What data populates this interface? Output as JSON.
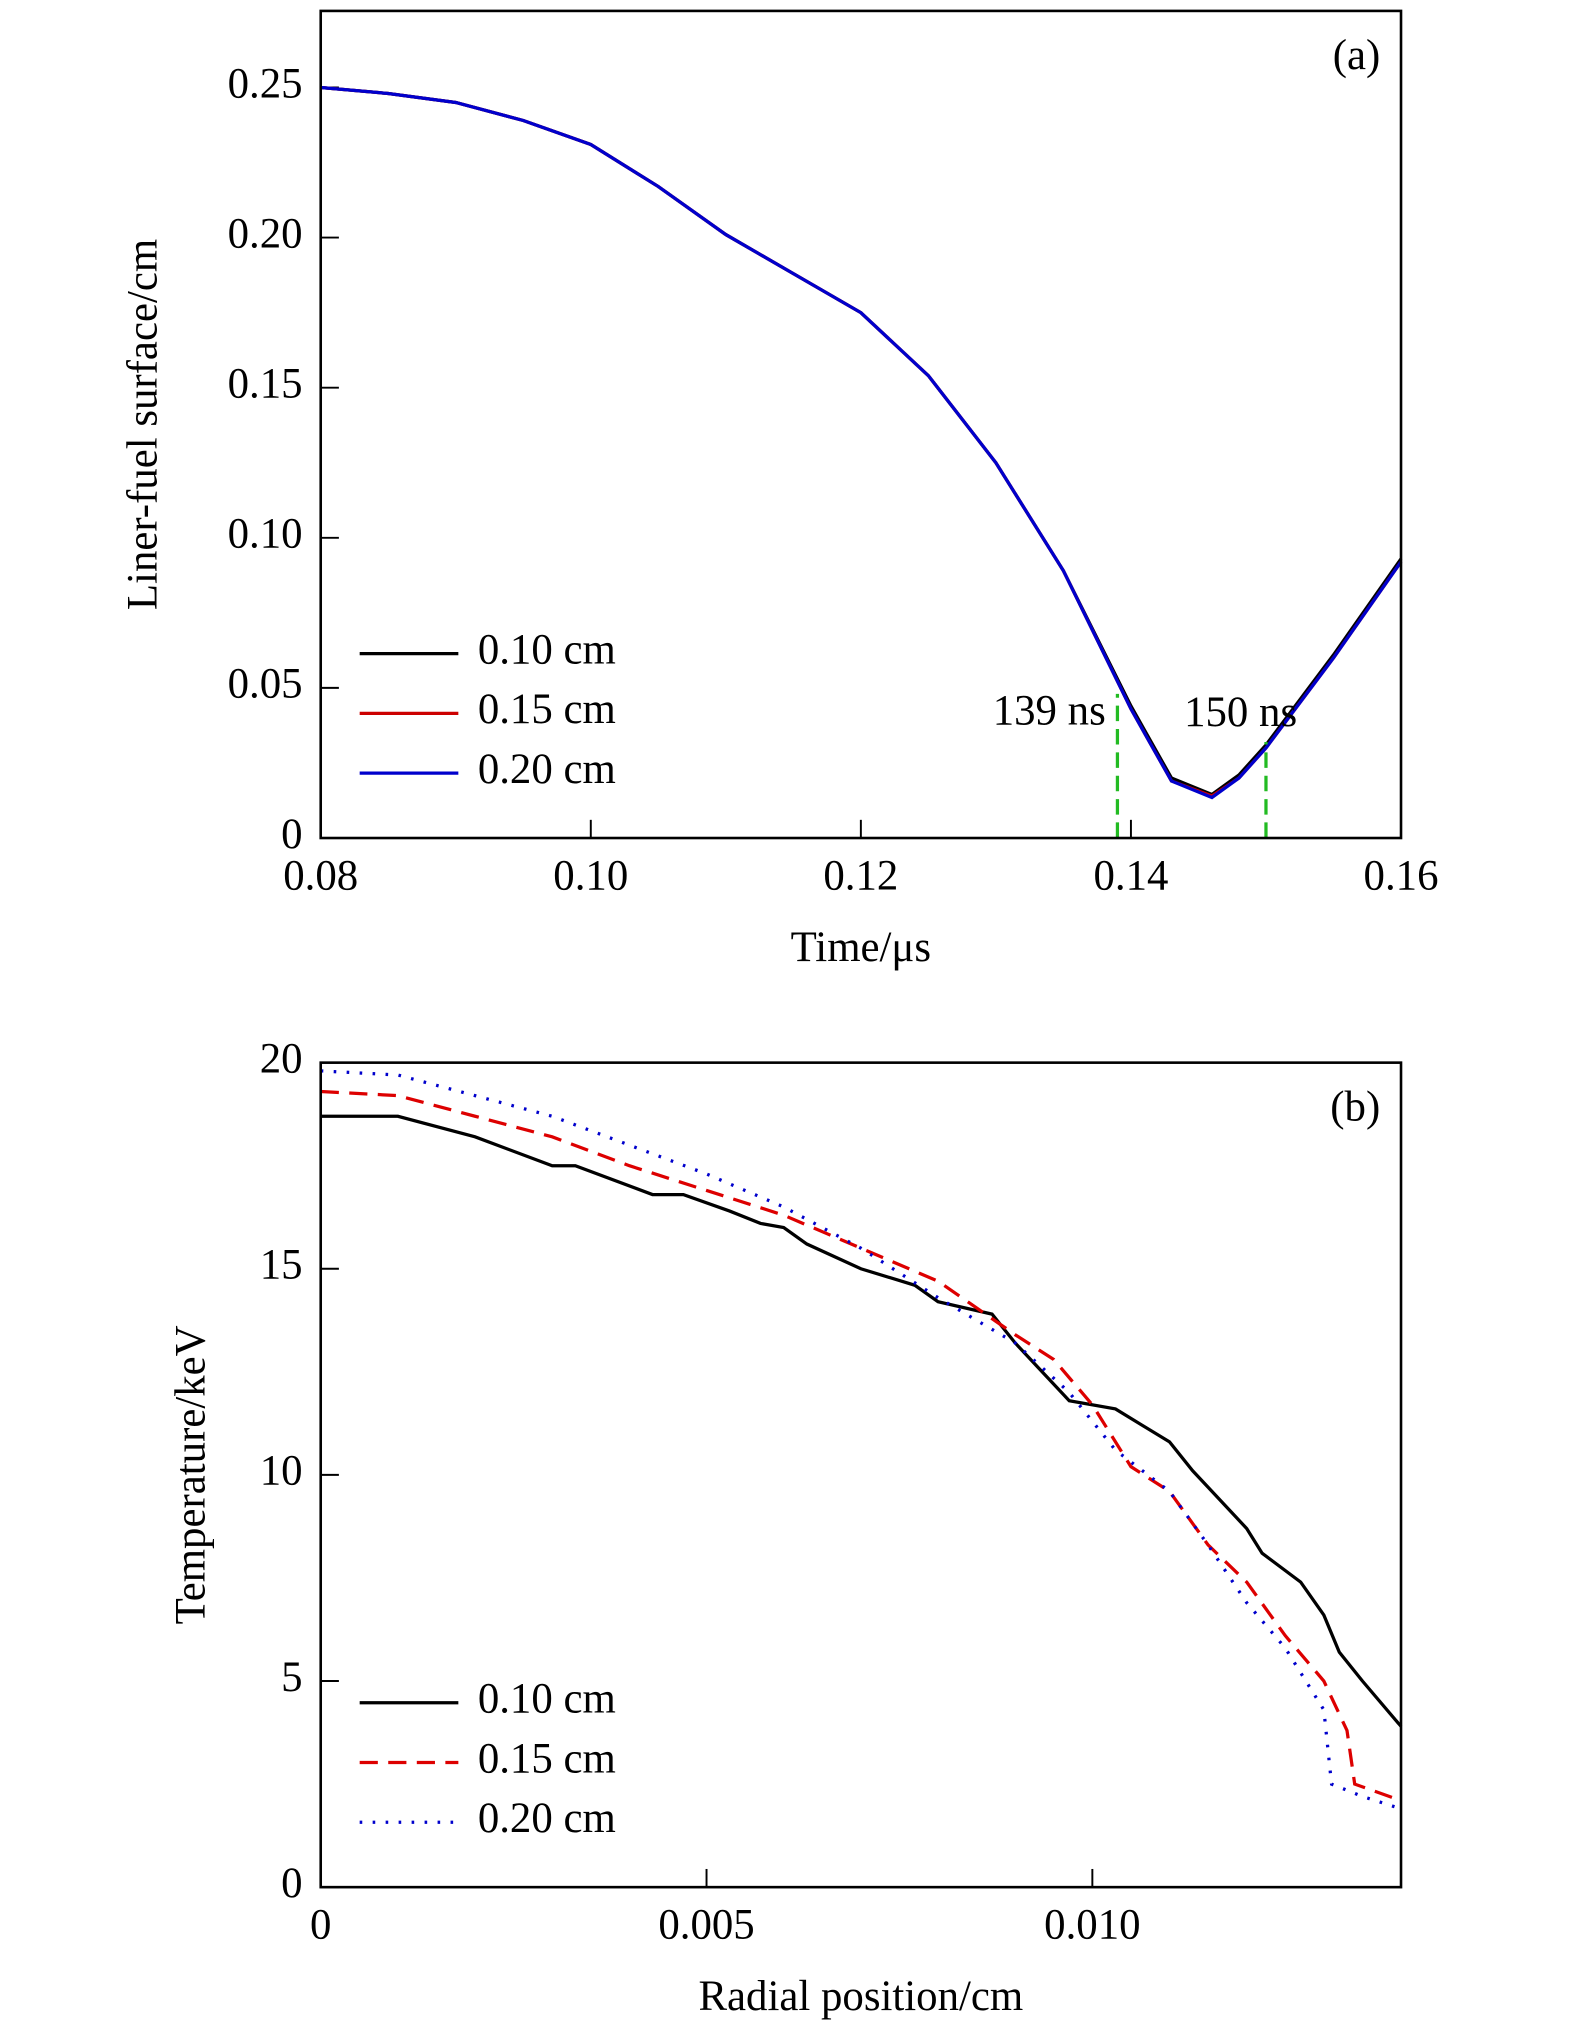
{
  "chart_data": [
    {
      "type": "line",
      "panel_label": "(a)",
      "x_label": "Time/μs",
      "y_label": "Liner-fuel surface/cm",
      "xlim": [
        0.08,
        0.16
      ],
      "xticks": [
        0.08,
        {
          "value": 0.1,
          "label": "0.10"
        },
        0.12,
        0.14,
        0.16
      ],
      "ylim": [
        0,
        0.2755
      ],
      "yticks": [
        0,
        0.05,
        {
          "value": 0.1,
          "label": "0.10"
        },
        0.15,
        {
          "value": 0.2,
          "label": "0.20"
        },
        0.25
      ],
      "legend": "lower left",
      "x": [
        0.08,
        0.085,
        0.09,
        0.095,
        0.1,
        0.105,
        0.11,
        0.115,
        0.12,
        0.125,
        0.13,
        0.135,
        0.14,
        0.143,
        0.146,
        0.148,
        0.15,
        0.155,
        0.16
      ],
      "series": [
        {
          "name": "0.10 cm",
          "color": "#000000",
          "style": "solid",
          "values": [
            0.25,
            0.248,
            0.245,
            0.239,
            0.231,
            0.217,
            0.201,
            0.188,
            0.175,
            0.154,
            0.125,
            0.089,
            0.044,
            0.02,
            0.0145,
            0.021,
            0.031,
            0.061,
            0.093
          ]
        },
        {
          "name": "0.15 cm",
          "color": "#cc0000",
          "style": "solid",
          "values": [
            0.25,
            0.248,
            0.245,
            0.239,
            0.231,
            0.217,
            0.201,
            0.188,
            0.175,
            0.154,
            0.125,
            0.089,
            0.043,
            0.019,
            0.014,
            0.02,
            0.03,
            0.06,
            0.092
          ]
        },
        {
          "name": "0.20 cm",
          "color": "#0000cc",
          "style": "solid",
          "values": [
            0.25,
            0.248,
            0.245,
            0.239,
            0.231,
            0.217,
            0.201,
            0.188,
            0.175,
            0.154,
            0.125,
            0.089,
            0.043,
            0.019,
            0.0135,
            0.02,
            0.03,
            0.06,
            0.092
          ]
        }
      ],
      "vlines": [
        {
          "x": 0.139,
          "y": 0.048,
          "label": "139 ns"
        },
        {
          "x": 0.15,
          "y": 0.032,
          "label": "150 ns"
        }
      ],
      "vline_color": "#22bb22"
    },
    {
      "type": "line",
      "panel_label": "(b)",
      "x_label": "Radial position/cm",
      "y_label": "Temperature/keV",
      "xlim": [
        0,
        0.014
      ],
      "xticks": [
        0,
        0.005,
        {
          "value": 0.01,
          "label": "0.010"
        }
      ],
      "ylim": [
        0,
        20
      ],
      "yticks": [
        0,
        5,
        10,
        15,
        20
      ],
      "legend": "lower left",
      "series": [
        {
          "name": "0.10 cm",
          "color": "#000000",
          "style": "solid",
          "x": [
            0,
            0.001,
            0.002,
            0.003,
            0.0033,
            0.0043,
            0.0047,
            0.0053,
            0.0057,
            0.006,
            0.0063,
            0.007,
            0.0077,
            0.008,
            0.0087,
            0.009,
            0.0093,
            0.0097,
            0.0103,
            0.011,
            0.0113,
            0.0115,
            0.0118,
            0.012,
            0.0122,
            0.0127,
            0.013,
            0.0132,
            0.0135,
            0.014
          ],
          "values": [
            18.7,
            18.7,
            18.2,
            17.5,
            17.5,
            16.8,
            16.8,
            16.4,
            16.1,
            16.0,
            15.6,
            15.0,
            14.6,
            14.2,
            13.9,
            13.2,
            12.6,
            11.8,
            11.6,
            10.8,
            10.1,
            9.7,
            9.1,
            8.7,
            8.1,
            7.4,
            6.6,
            5.7,
            5.0,
            3.9
          ]
        },
        {
          "name": "0.15 cm",
          "color": "#dd0000",
          "style": "dashed",
          "x": [
            0,
            0.001,
            0.002,
            0.003,
            0.004,
            0.005,
            0.006,
            0.007,
            0.008,
            0.009,
            0.0095,
            0.01,
            0.0105,
            0.011,
            0.0115,
            0.012,
            0.0125,
            0.013,
            0.0133,
            0.0134,
            0.014
          ],
          "values": [
            19.3,
            19.2,
            18.7,
            18.2,
            17.5,
            16.9,
            16.3,
            15.5,
            14.7,
            13.4,
            12.8,
            11.7,
            10.2,
            9.6,
            8.3,
            7.4,
            6.1,
            5.0,
            3.8,
            2.5,
            2.1
          ]
        },
        {
          "name": "0.20 cm",
          "color": "#0000cc",
          "style": "dotted",
          "x": [
            0,
            0.001,
            0.002,
            0.003,
            0.004,
            0.005,
            0.006,
            0.007,
            0.008,
            0.009,
            0.0097,
            0.0103,
            0.011,
            0.0115,
            0.012,
            0.0125,
            0.013,
            0.0131,
            0.0135,
            0.014
          ],
          "values": [
            19.8,
            19.7,
            19.2,
            18.7,
            18.0,
            17.3,
            16.5,
            15.5,
            14.3,
            13.2,
            12.0,
            10.6,
            9.6,
            8.3,
            6.9,
            5.8,
            4.3,
            2.5,
            2.2,
            1.9
          ]
        }
      ]
    }
  ]
}
